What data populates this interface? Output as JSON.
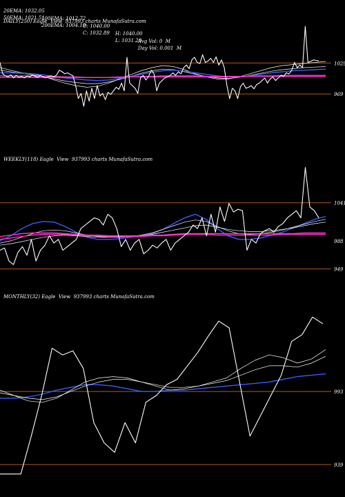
{
  "header": {
    "row1": [
      {
        "text": "20EMA: 1032.05"
      },
      {
        "text": "100EMA: 1012.72"
      },
      {
        "text": "O: 1040.00"
      },
      {
        "text": "H: 1040.00"
      },
      {
        "text": "Avg Vol: 0  M"
      }
    ],
    "row2": [
      {
        "text": "50EMA: 1021.51"
      },
      {
        "text": "200EMA: 1004.19"
      },
      {
        "text": "C: 1032.89"
      },
      {
        "text": "L: 1031.20"
      },
      {
        "text": "Day Vol: 0.001  M"
      }
    ]
  },
  "colors": {
    "background": "#000000",
    "price": "#ffffff",
    "ema_blue": "#3a5bff",
    "ema_pink": "#ff33cc",
    "level_line": "#b35a1f"
  },
  "chart_data": [
    {
      "type": "line",
      "label": "DAILY(250) Eagle  View  937993 charts MunafaSutra.com",
      "tick_labels": [
        {
          "text": "1029",
          "value": 1029
        },
        {
          "text": "969",
          "value": 969
        }
      ],
      "level_lines": [
        1029,
        969
      ],
      "ylim": [
        850,
        1115
      ],
      "price": [
        1030,
        1008,
        1004,
        1002,
        1006,
        1000,
        1005,
        1001,
        1003,
        1000,
        1004,
        1002,
        1006,
        1003,
        1001,
        1005,
        1002,
        1000,
        1003,
        1004,
        1002,
        1006,
        1015,
        1012,
        1008,
        1010,
        1007,
        1004,
        985,
        960,
        970,
        945,
        975,
        955,
        980,
        960,
        985,
        965,
        970,
        958,
        972,
        968,
        975,
        982,
        978,
        990,
        975,
        1040,
        990,
        985,
        980,
        970,
        1000,
        1005,
        996,
        1003,
        1015,
        1008,
        975,
        990,
        995,
        1000,
        1002,
        1005,
        1010,
        1005,
        1012,
        1008,
        1020,
        1025,
        1018,
        1035,
        1040,
        1030,
        1028,
        1045,
        1030,
        1033,
        1038,
        1030,
        1041,
        1025,
        1035,
        1020,
        985,
        960,
        980,
        975,
        960,
        983,
        990,
        980,
        982,
        985,
        979,
        987,
        990,
        995,
        1000,
        990,
        998,
        1002,
        995,
        1000,
        1005,
        1003,
        1010,
        1008,
        1015,
        1030,
        1020,
        1025,
        1020,
        1100,
        1030,
        1032,
        1035,
        1034,
        1033
      ],
      "series": [
        {
          "color": "#ffffff",
          "values": [
            1020,
            1015,
            1010,
            1008,
            1003,
            996,
            990,
            985,
            982,
            984,
            990,
            998,
            1006,
            1014,
            1020,
            1024,
            1022,
            1016,
            1008,
            1002,
            998,
            998,
            1002,
            1008,
            1014,
            1020,
            1024,
            1026,
            1028,
            1030,
            1032
          ]
        },
        {
          "color": "#ffffff",
          "values": [
            1015,
            1012,
            1009,
            1006,
            1002,
            998,
            994,
            991,
            989,
            989,
            992,
            997,
            1003,
            1009,
            1014,
            1017,
            1016,
            1012,
            1007,
            1003,
            1000,
            999,
            1001,
            1005,
            1009,
            1013,
            1016,
            1018,
            1020,
            1021,
            1022
          ]
        },
        {
          "color": "#3a5bff",
          "values": [
            1010,
            1010,
            1009,
            1008,
            1006,
            1003,
            1000,
            998,
            996,
            995,
            996,
            999,
            1003,
            1007,
            1011,
            1014,
            1015,
            1013,
            1010,
            1007,
            1004,
            1002,
            1002,
            1004,
            1007,
            1010,
            1012,
            1014,
            1015,
            1016,
            1017
          ]
        },
        {
          "color": "#ff33cc",
          "values": [
            1004,
            1004,
            1004,
            1004,
            1003,
            1003,
            1002,
            1002,
            1001,
            1001,
            1001,
            1002,
            1002,
            1003,
            1003,
            1004,
            1004,
            1004,
            1004,
            1003,
            1003,
            1003,
            1003,
            1003,
            1004,
            1004,
            1005,
            1005,
            1005,
            1005,
            1005
          ]
        },
        {
          "color": "#ff33cc",
          "values": [
            1001,
            1001,
            1001,
            1001,
            1001,
            1001,
            1001,
            1001,
            1001,
            1001,
            1001,
            1001,
            1002,
            1002,
            1002,
            1002,
            1002,
            1002,
            1002,
            1002,
            1002,
            1002,
            1002,
            1003,
            1003,
            1003,
            1003,
            1003,
            1003,
            1003,
            1003
          ]
        }
      ]
    },
    {
      "type": "line",
      "label": "WEEKLY(118) Eagle  View  937993 charts MunafaSutra.com",
      "tick_labels": [
        {
          "text": "1041",
          "value": 1041
        },
        {
          "text": "988",
          "value": 988
        },
        {
          "text": "949",
          "value": 949
        }
      ],
      "level_lines": [
        1041,
        949
      ],
      "ylim": [
        915,
        1105
      ],
      "price": [
        975,
        978,
        960,
        955,
        972,
        980,
        968,
        990,
        960,
        975,
        982,
        995,
        985,
        990,
        975,
        980,
        985,
        990,
        1005,
        1010,
        1015,
        1020,
        1018,
        1010,
        1025,
        1020,
        1005,
        980,
        990,
        975,
        985,
        990,
        970,
        975,
        982,
        978,
        985,
        990,
        975,
        985,
        990,
        995,
        1000,
        1010,
        1005,
        1020,
        995,
        1025,
        1000,
        1035,
        1015,
        1040,
        1028,
        1032,
        1030,
        975,
        990,
        985,
        998,
        1002,
        1005,
        1000,
        1008,
        1012,
        1020,
        1025,
        1030,
        1020,
        1090,
        1035,
        1030,
        1020
      ],
      "series": [
        {
          "color": "#3a5bff",
          "values": [
            988,
            995,
            1005,
            1012,
            1015,
            1014,
            1008,
            1000,
            993,
            990,
            990,
            991,
            993,
            995,
            998,
            1004,
            1012,
            1020,
            1025,
            1018,
            1005,
            995,
            990,
            990,
            992,
            996,
            1000,
            1006,
            1012,
            1018,
            1022
          ]
        },
        {
          "color": "#ffffff",
          "values": [
            985,
            988,
            993,
            998,
            1002,
            1003,
            1002,
            999,
            996,
            994,
            993,
            993,
            994,
            996,
            999,
            1004,
            1009,
            1014,
            1017,
            1015,
            1008,
            1002,
            998,
            997,
            998,
            1000,
            1003,
            1007,
            1011,
            1015,
            1018
          ]
        },
        {
          "color": "#ffffff",
          "values": [
            982,
            984,
            987,
            990,
            993,
            995,
            996,
            995,
            994,
            993,
            993,
            993,
            994,
            995,
            997,
            1000,
            1003,
            1006,
            1009,
            1010,
            1007,
            1004,
            1002,
            1001,
            1001,
            1002,
            1004,
            1006,
            1009,
            1012,
            1014
          ]
        },
        {
          "color": "#ff33cc",
          "values": [
            994,
            996,
            998,
            999,
            999,
            999,
            998,
            997,
            996,
            996,
            995,
            995,
            995,
            995,
            996,
            996,
            997,
            998,
            998,
            998,
            998,
            998,
            998,
            998,
            998,
            998,
            998,
            998,
            999,
            999,
            999
          ]
        },
        {
          "color": "#ff33cc",
          "values": [
            990,
            992,
            994,
            996,
            997,
            997,
            997,
            996,
            995,
            995,
            994,
            994,
            994,
            994,
            995,
            995,
            996,
            997,
            997,
            997,
            996,
            996,
            996,
            996,
            996,
            996,
            997,
            997,
            997,
            997,
            997
          ]
        }
      ]
    },
    {
      "type": "line",
      "label": "MONTHLY(32) Eagle  View  937993 charts MunafaSutra.com",
      "tick_labels": [
        {
          "text": "993",
          "value": 993
        },
        {
          "text": "939",
          "value": 939
        }
      ],
      "level_lines": [
        993,
        939
      ],
      "ylim": [
        915,
        1065
      ],
      "price": [
        932,
        932,
        932,
        960,
        990,
        1025,
        1020,
        1023,
        1010,
        970,
        955,
        948,
        970,
        955,
        985,
        990,
        998,
        1002,
        1012,
        1022,
        1034,
        1045,
        1040,
        1000,
        960,
        975,
        990,
        1005,
        1030,
        1035,
        1048,
        1043
      ],
      "series": [
        {
          "color": "#3a5bff",
          "values": [
            988,
            988,
            989,
            991,
            994,
            996,
            998,
            998,
            997,
            995,
            993,
            993,
            994,
            994,
            995,
            996,
            997,
            998,
            999,
            1000,
            1002,
            1004,
            1005,
            1006
          ]
        },
        {
          "color": "#ffffff",
          "values": [
            994,
            990,
            986,
            985,
            988,
            994,
            1000,
            1003,
            1004,
            1003,
            1000,
            997,
            994,
            995,
            997,
            1000,
            1003,
            1010,
            1016,
            1020,
            1018,
            1014,
            1017,
            1024
          ]
        },
        {
          "color": "#ffffff",
          "values": [
            992,
            990,
            988,
            987,
            989,
            993,
            997,
            1000,
            1002,
            1002,
            1000,
            998,
            996,
            996,
            997,
            999,
            1001,
            1005,
            1009,
            1012,
            1012,
            1011,
            1014,
            1019
          ]
        }
      ]
    }
  ]
}
